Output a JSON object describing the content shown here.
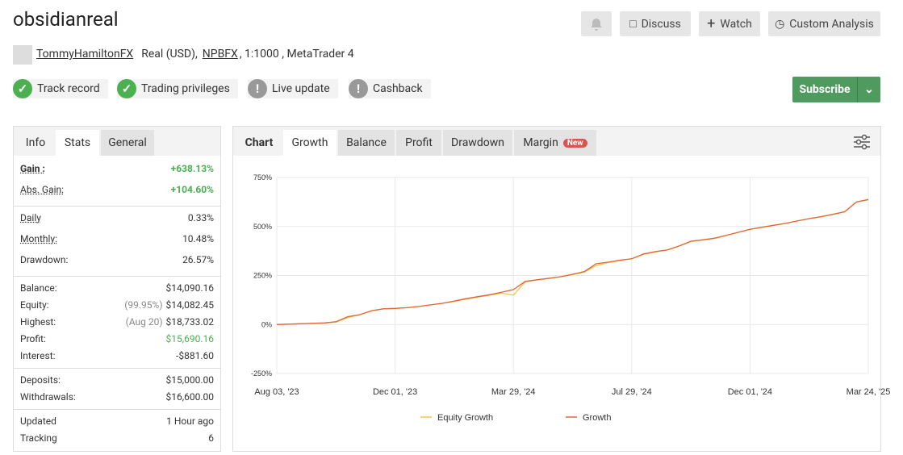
{
  "header": {
    "title": "obsidianreal",
    "user": "TommyHamiltonFX",
    "account": "Real (USD),",
    "broker": "NPBFX",
    "details": ", 1:1000 , MetaTrader 4",
    "buttons": [
      "Discuss",
      "Watch",
      "Custom Analysis"
    ],
    "badges": [
      {
        "label": "Track record",
        "status": "ok"
      },
      {
        "label": "Trading privileges",
        "status": "ok"
      },
      {
        "label": "Live update",
        "status": "warn"
      },
      {
        "label": "Cashback",
        "status": "warn"
      }
    ],
    "subscribe": "Subscribe"
  },
  "stats": {
    "tabs": [
      "Info",
      "Stats",
      "General"
    ],
    "groups": [
      [
        {
          "label": "Gain :",
          "value": "+638.13%",
          "color": "#4caf50"
        },
        {
          "label": "Abs. Gain:",
          "value": "+104.60%",
          "color": "#4caf50"
        }
      ],
      [
        {
          "label": "Daily",
          "value": "0.33%"
        },
        {
          "label": "Monthly:",
          "value": "10.48%"
        },
        {
          "label": "Drawdown:",
          "value": "26.57%"
        }
      ],
      [
        {
          "label": "Balance:",
          "value": "$14,090.16"
        },
        {
          "label": "Equity:",
          "note": "(99.95%)",
          "value": "$14,082.45"
        },
        {
          "label": "Highest:",
          "note": "(Aug 20)",
          "value": "$18,733.02"
        },
        {
          "label": "Profit:",
          "value": "$15,690.16",
          "color": "#4caf50"
        },
        {
          "label": "Interest:",
          "value": "-$881.60"
        }
      ],
      [
        {
          "label": "Deposits:",
          "value": "$15,000.00"
        },
        {
          "label": "Withdrawals:",
          "value": "$16,600.00"
        }
      ],
      [
        {
          "label": "Updated",
          "value": "1 Hour ago"
        },
        {
          "label": "Tracking",
          "value": "6"
        }
      ]
    ]
  },
  "chart_tabs": {
    "tabs": [
      "Chart",
      "Growth",
      "Balance",
      "Profit",
      "Drawdown",
      "Margin"
    ],
    "badge": "New"
  },
  "chart_data": {
    "type": "line",
    "categories": [
      "Aug 03, '23",
      null,
      null,
      null,
      null,
      null,
      null,
      null,
      null,
      null,
      "Dec 01, '23",
      null,
      null,
      null,
      null,
      null,
      null,
      null,
      null,
      null,
      "Mar 29, '24",
      null,
      null,
      null,
      null,
      null,
      null,
      null,
      null,
      null,
      "Jul 29, '24",
      null,
      null,
      null,
      null,
      null,
      null,
      null,
      null,
      null,
      "Dec 01, '24",
      null,
      null,
      null,
      null,
      null,
      null,
      null,
      null,
      null,
      "Mar 24, '25"
    ],
    "ylim": [
      -250,
      750
    ],
    "yticks": [
      {
        "value": -250,
        "label": "-250%"
      },
      {
        "value": 0,
        "label": "0%"
      },
      {
        "value": 250,
        "label": "250%"
      },
      {
        "value": 500,
        "label": "500%"
      },
      {
        "value": 750,
        "label": "750%"
      }
    ],
    "grid": true,
    "series": [
      {
        "name": "Equity Growth",
        "color": "#f5c342",
        "values": [
          0,
          2,
          4,
          6,
          8,
          12,
          35,
          50,
          70,
          80,
          82,
          86,
          92,
          100,
          108,
          118,
          130,
          140,
          150,
          160,
          150,
          218,
          228,
          234,
          244,
          254,
          268,
          300,
          316,
          326,
          335,
          358,
          370,
          380,
          400,
          423,
          432,
          440,
          455,
          470,
          486,
          496,
          506,
          516,
          528,
          540,
          550,
          562,
          575,
          625,
          636
        ]
      },
      {
        "name": "Growth",
        "color": "#e0663a",
        "values": [
          0,
          2,
          4,
          6,
          8,
          14,
          40,
          50,
          70,
          80,
          82,
          86,
          92,
          100,
          108,
          120,
          132,
          142,
          152,
          165,
          178,
          220,
          228,
          236,
          244,
          256,
          270,
          310,
          318,
          328,
          335,
          360,
          372,
          380,
          400,
          425,
          432,
          440,
          455,
          470,
          486,
          496,
          506,
          516,
          528,
          540,
          550,
          562,
          575,
          625,
          638
        ]
      }
    ]
  }
}
